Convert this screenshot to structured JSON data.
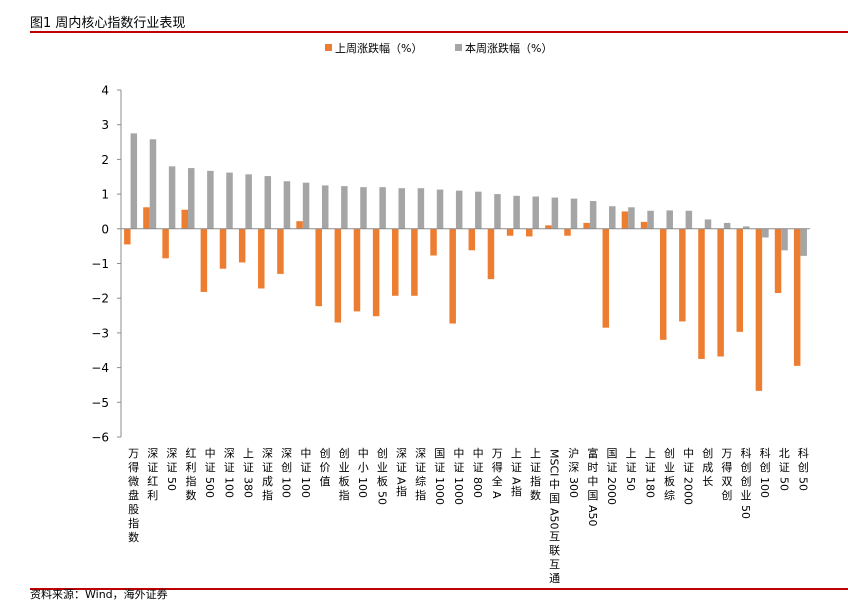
{
  "figure": {
    "title": "图1 周内核心指数行业表现",
    "source": "资料来源：Wind，海外证券"
  },
  "chart_data": {
    "type": "bar",
    "title": "",
    "xlabel": "",
    "ylabel": "",
    "ylim": [
      -6,
      4
    ],
    "yticks": [
      4,
      3,
      2,
      1,
      0,
      -1,
      -2,
      -3,
      -4,
      -5,
      -6
    ],
    "grid": false,
    "legend_position": "top",
    "categories": [
      "万得微盘股指数",
      "深证红利",
      "深证50",
      "红利指数",
      "中证500",
      "深证100",
      "上证380",
      "深证成指",
      "深创100",
      "中证100",
      "创价值",
      "创业板指",
      "中小100",
      "创业板50",
      "深证A指",
      "深证综指",
      "国证1000",
      "中证1000",
      "中证800",
      "万得全A",
      "上证A指",
      "上证指数",
      "MSCI中国A50互联互通",
      "沪深300",
      "富时中国A50",
      "国证2000",
      "上证50",
      "上证180",
      "创业板综",
      "中证2000",
      "创成长",
      "万得双创",
      "科创创业50",
      "科创100",
      "北证50",
      "科创50"
    ],
    "series": [
      {
        "name": "上周涨跌幅（%）",
        "color": "#ed7d31",
        "values": [
          -0.45,
          0.62,
          -0.85,
          0.55,
          -1.82,
          -1.15,
          -0.97,
          -1.72,
          -1.3,
          0.22,
          -2.23,
          -2.7,
          -2.38,
          -2.52,
          -1.93,
          -1.93,
          -0.77,
          -2.73,
          -0.62,
          -1.45,
          -0.2,
          -0.22,
          0.1,
          -0.2,
          0.17,
          -2.85,
          0.5,
          0.2,
          -3.2,
          -2.67,
          -3.75,
          -3.68,
          -2.97,
          -4.67,
          -1.85,
          -3.95
        ]
      },
      {
        "name": "本周涨跌幅（%）",
        "color": "#a5a5a5",
        "values": [
          2.75,
          2.58,
          1.8,
          1.75,
          1.67,
          1.62,
          1.57,
          1.52,
          1.37,
          1.33,
          1.25,
          1.23,
          1.2,
          1.2,
          1.17,
          1.17,
          1.13,
          1.1,
          1.07,
          1.0,
          0.95,
          0.93,
          0.9,
          0.87,
          0.8,
          0.65,
          0.62,
          0.52,
          0.53,
          0.52,
          0.27,
          0.17,
          0.07,
          -0.25,
          -0.62,
          -0.78
        ]
      }
    ]
  }
}
